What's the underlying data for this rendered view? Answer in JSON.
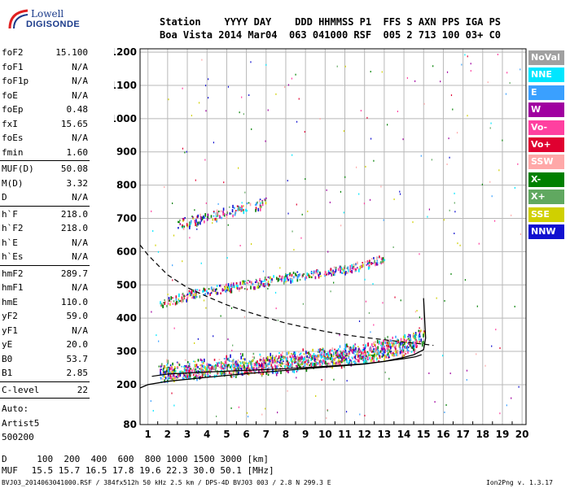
{
  "logo": {
    "top": "Lowell",
    "bottom": "DIGISONDE"
  },
  "header": {
    "row1": "Station    YYYY DAY    DDD HHMMSS P1  FFS S AXN PPS IGA PS",
    "row2": "Boa Vista 2014 Mar04  063 041000 RSF  005 2 713 100 03+ C0"
  },
  "params": [
    {
      "label": "foF2",
      "value": "15.100"
    },
    {
      "label": "foF1",
      "value": "N/A"
    },
    {
      "label": "foF1p",
      "value": "N/A"
    },
    {
      "label": "foE",
      "value": "N/A"
    },
    {
      "label": "foEp",
      "value": "0.48"
    },
    {
      "label": "fxI",
      "value": "15.65"
    },
    {
      "label": "foEs",
      "value": "N/A"
    },
    {
      "label": "fmin",
      "value": "1.60"
    },
    {
      "label": "MUF(D)",
      "value": "50.08"
    },
    {
      "label": "M(D)",
      "value": "3.32"
    },
    {
      "label": "D",
      "value": "N/A"
    },
    {
      "label": "h`F",
      "value": "218.0"
    },
    {
      "label": "h`F2",
      "value": "218.0"
    },
    {
      "label": "h`E",
      "value": "N/A"
    },
    {
      "label": "h`Es",
      "value": "N/A"
    },
    {
      "label": "hmF2",
      "value": "289.7"
    },
    {
      "label": "hmF1",
      "value": "N/A"
    },
    {
      "label": "hmE",
      "value": "110.0"
    },
    {
      "label": "yF2",
      "value": "59.0"
    },
    {
      "label": "yF1",
      "value": "N/A"
    },
    {
      "label": "yE",
      "value": "20.0"
    },
    {
      "label": "B0",
      "value": "53.7"
    },
    {
      "label": "B1",
      "value": "2.85"
    },
    {
      "label": "C-level",
      "value": "22"
    }
  ],
  "notes": [
    "Auto:",
    "Artist5",
    "500200"
  ],
  "legend": [
    {
      "label": "NoVal",
      "color": "#a0a0a0"
    },
    {
      "label": "NNE",
      "color": "#00e6ff"
    },
    {
      "label": "E",
      "color": "#3aa0ff"
    },
    {
      "label": "W",
      "color": "#a000a0"
    },
    {
      "label": "Vo-",
      "color": "#ff40a0"
    },
    {
      "label": "Vo+",
      "color": "#e00030"
    },
    {
      "label": "SSW",
      "color": "#ffa8a8"
    },
    {
      "label": "X-",
      "color": "#008000"
    },
    {
      "label": "X+",
      "color": "#60a860"
    },
    {
      "label": "SSE",
      "color": "#d0d000"
    },
    {
      "label": "NNW",
      "color": "#1010d0"
    }
  ],
  "footer": {
    "d_label": "D",
    "d_values": "  100  200  400  600  800 1000 1500 3000 [km]",
    "muf_label": "MUF",
    "muf_values": " 15.5 15.7 16.5 17.8 19.6 22.3 30.0 50.1 [MHz]",
    "file_line": "BVJ03_2014063041000.RSF / 384fx512h 50 kHz 2.5 km / DPS-4D BVJ03 003 / 2.8 N 299.3 E",
    "version": "Ion2Png v. 1.3.17"
  },
  "chart_data": {
    "type": "scatter",
    "xlim": [
      0.6,
      20.2
    ],
    "ylim": [
      80,
      1210
    ],
    "xticks": [
      1,
      2,
      3,
      4,
      5,
      6,
      7,
      8,
      9,
      10,
      11,
      12,
      13,
      14,
      15,
      16,
      17,
      18,
      19,
      20
    ],
    "yticks": [
      80,
      200,
      300,
      400,
      500,
      600,
      700,
      800,
      900,
      1000,
      1100,
      1200
    ],
    "grid": true,
    "traces": [
      {
        "name": "F2 O-trace",
        "x": [
          1.6,
          2,
          3,
          4,
          5,
          6,
          7,
          8,
          9,
          10,
          11,
          12,
          13,
          14,
          14.5,
          15
        ],
        "y": [
          225,
          232,
          237,
          242,
          245,
          250,
          255,
          262,
          268,
          275,
          282,
          290,
          300,
          312,
          322,
          340
        ]
      },
      {
        "name": "Second hop",
        "x": [
          1.6,
          3,
          5,
          7,
          9,
          11,
          12,
          13
        ],
        "y": [
          440,
          468,
          490,
          510,
          530,
          545,
          560,
          580
        ]
      },
      {
        "name": "Third hop",
        "x": [
          2.5,
          4,
          5.5,
          7
        ],
        "y": [
          680,
          700,
          725,
          745
        ]
      }
    ],
    "profile_curve": {
      "x": [
        0.6,
        1,
        2,
        4,
        6,
        8,
        10,
        12,
        13,
        14,
        14.5,
        15,
        15.1,
        15.0
      ],
      "y": [
        190,
        200,
        210,
        222,
        233,
        243,
        253,
        262,
        270,
        282,
        290,
        305,
        340,
        460
      ]
    },
    "dashed_curve": {
      "x": [
        0.6,
        1,
        1.5,
        2,
        3,
        4,
        5,
        6,
        7,
        8,
        9,
        10,
        11,
        12,
        13,
        14,
        15,
        15.5
      ],
      "y": [
        620,
        590,
        560,
        530,
        492,
        465,
        440,
        420,
        402,
        385,
        372,
        360,
        350,
        342,
        335,
        328,
        322,
        318
      ]
    },
    "lower_curve": {
      "x": [
        1.2,
        2,
        4,
        6,
        8,
        10,
        12,
        13,
        14,
        14.6,
        14.9
      ],
      "y": [
        225,
        232,
        238,
        243,
        248,
        255,
        263,
        270,
        278,
        284,
        290
      ]
    }
  }
}
